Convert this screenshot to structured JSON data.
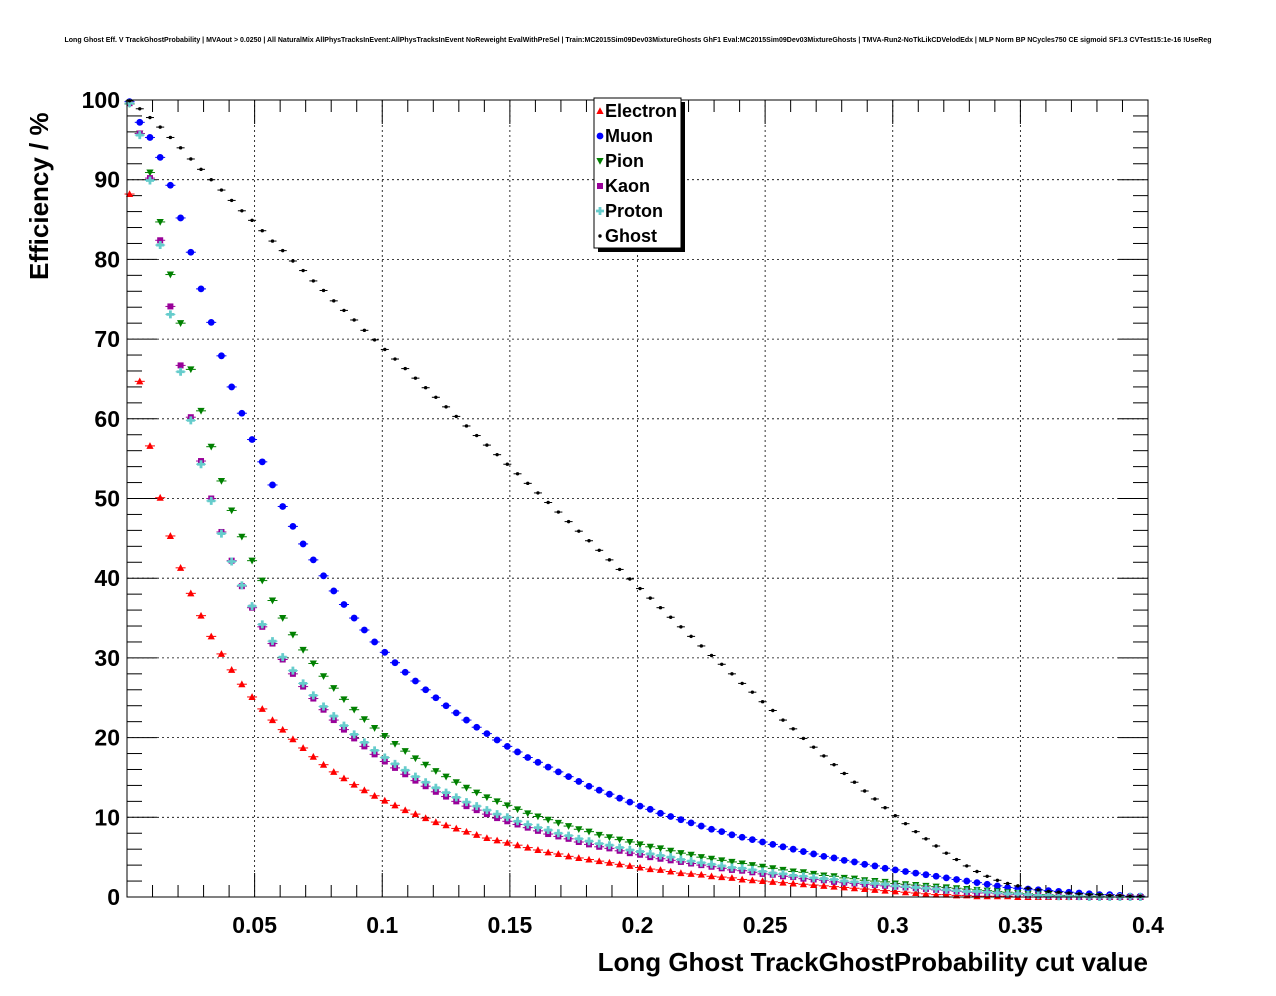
{
  "chart_data": {
    "type": "scatter",
    "title": "Long Ghost Eff. V TrackGhostProbability | MVAout > 0.0250 | All NaturalMix AllPhysTracksInEvent:AllPhysTracksInEvent NoReweight EvalWithPreSel | Train:MC2015Sim09Dev03MixtureGhosts GhF1 Eval:MC2015Sim09Dev03MixtureGhosts | TMVA-Run2-NoTkLikCDVelodEdx | MLP Norm BP NCycles750 CE sigmoid SF1.3 CVTest15:1e-16 !UseReg",
    "xlabel": "Long Ghost TrackGhostProbability cut value",
    "ylabel": "Efficiency / %",
    "xlim": [
      0.0,
      0.4
    ],
    "ylim": [
      0,
      100
    ],
    "xticks": [
      0.05,
      0.1,
      0.15,
      0.2,
      0.25,
      0.3,
      0.35,
      0.4
    ],
    "xtick_labels": [
      "0.05",
      "0.1",
      "0.15",
      "0.2",
      "0.25",
      "0.3",
      "0.35",
      "0.4"
    ],
    "yticks": [
      0,
      10,
      20,
      30,
      40,
      50,
      60,
      70,
      80,
      90,
      100
    ],
    "ytick_labels": [
      "0",
      "10",
      "20",
      "30",
      "40",
      "50",
      "60",
      "70",
      "80",
      "90",
      "100"
    ],
    "grid": true,
    "legend_position": "top-center",
    "x_start": 0.001,
    "x_step": 0.004,
    "series": [
      {
        "name": "Electron",
        "color": "#ff0000",
        "marker": "triangle-up",
        "values": [
          88.2,
          64.7,
          56.6,
          50.1,
          45.3,
          41.3,
          38.1,
          35.3,
          32.7,
          30.5,
          28.5,
          26.7,
          25.1,
          23.6,
          22.2,
          21.0,
          19.8,
          18.7,
          17.6,
          16.6,
          15.7,
          14.9,
          14.1,
          13.4,
          12.7,
          12.1,
          11.5,
          10.9,
          10.4,
          9.9,
          9.4,
          9.0,
          8.6,
          8.2,
          7.8,
          7.4,
          7.1,
          6.8,
          6.5,
          6.2,
          5.9,
          5.6,
          5.4,
          5.1,
          4.9,
          4.7,
          4.5,
          4.3,
          4.1,
          3.9,
          3.7,
          3.5,
          3.4,
          3.2,
          3.0,
          2.9,
          2.8,
          2.6,
          2.5,
          2.4,
          2.2,
          2.1,
          2.0,
          1.9,
          1.8,
          1.7,
          1.6,
          1.5,
          1.4,
          1.3,
          1.2,
          1.1,
          1.0,
          0.9,
          0.8,
          0.7,
          0.6,
          0.5,
          0.4,
          0.3,
          0.3,
          0.2,
          0.2,
          0.1,
          0.1,
          0.1,
          0.1,
          0.0,
          0.0,
          0.0,
          0.0,
          0.0,
          0.0,
          0.0,
          0.0,
          0.0,
          0.0,
          0.0,
          0.0,
          0.0
        ]
      },
      {
        "name": "Muon",
        "color": "#0000ff",
        "marker": "circle",
        "values": [
          99.8,
          97.2,
          95.3,
          92.8,
          89.3,
          85.2,
          80.9,
          76.3,
          72.1,
          67.9,
          64.0,
          60.7,
          57.4,
          54.6,
          51.7,
          49.0,
          46.5,
          44.3,
          42.3,
          40.3,
          38.4,
          36.7,
          35.0,
          33.5,
          32.0,
          30.7,
          29.4,
          28.2,
          27.1,
          26.0,
          25.0,
          24.0,
          23.1,
          22.2,
          21.3,
          20.5,
          19.7,
          18.9,
          18.2,
          17.5,
          16.9,
          16.3,
          15.7,
          15.1,
          14.5,
          13.9,
          13.4,
          12.9,
          12.4,
          11.9,
          11.4,
          11.0,
          10.5,
          10.1,
          9.7,
          9.3,
          8.9,
          8.5,
          8.2,
          7.8,
          7.5,
          7.2,
          6.9,
          6.6,
          6.3,
          6.0,
          5.7,
          5.4,
          5.1,
          4.9,
          4.6,
          4.4,
          4.1,
          3.9,
          3.6,
          3.4,
          3.2,
          3.0,
          2.8,
          2.6,
          2.4,
          2.2,
          2.0,
          1.8,
          1.6,
          1.4,
          1.2,
          1.1,
          1.0,
          0.9,
          0.8,
          0.7,
          0.6,
          0.5,
          0.4,
          0.3,
          0.3,
          0.2,
          0.1,
          0.1
        ]
      },
      {
        "name": "Pion",
        "color": "#008000",
        "marker": "triangle-down",
        "values": [
          99.5,
          95.8,
          90.9,
          84.7,
          78.1,
          72.0,
          66.2,
          61.0,
          56.5,
          52.2,
          48.5,
          45.2,
          42.2,
          39.7,
          37.2,
          35.0,
          32.9,
          31.0,
          29.3,
          27.7,
          26.2,
          24.8,
          23.5,
          22.3,
          21.2,
          20.2,
          19.2,
          18.3,
          17.4,
          16.6,
          15.8,
          15.1,
          14.4,
          13.7,
          13.1,
          12.5,
          12.0,
          11.5,
          11.0,
          10.5,
          10.1,
          9.7,
          9.3,
          8.9,
          8.5,
          8.2,
          7.8,
          7.5,
          7.2,
          6.9,
          6.6,
          6.3,
          6.1,
          5.8,
          5.5,
          5.3,
          5.0,
          4.8,
          4.6,
          4.4,
          4.2,
          4.0,
          3.8,
          3.6,
          3.4,
          3.2,
          3.1,
          2.9,
          2.7,
          2.6,
          2.4,
          2.3,
          2.1,
          2.0,
          1.9,
          1.7,
          1.6,
          1.5,
          1.4,
          1.3,
          1.2,
          1.1,
          1.0,
          0.9,
          0.8,
          0.7,
          0.6,
          0.5,
          0.4,
          0.3,
          0.3,
          0.2,
          0.2,
          0.1,
          0.1,
          0.1,
          0.0,
          0.0,
          0.0,
          0.0
        ]
      },
      {
        "name": "Kaon",
        "color": "#990099",
        "marker": "square",
        "values": [
          99.6,
          95.8,
          90.2,
          82.4,
          74.1,
          66.7,
          60.2,
          54.7,
          50.0,
          45.8,
          42.2,
          39.0,
          36.3,
          33.9,
          31.8,
          29.8,
          28.0,
          26.4,
          24.9,
          23.5,
          22.2,
          21.0,
          19.9,
          18.9,
          17.9,
          17.0,
          16.2,
          15.4,
          14.6,
          13.9,
          13.2,
          12.6,
          12.0,
          11.4,
          10.9,
          10.4,
          9.9,
          9.5,
          9.1,
          8.7,
          8.3,
          7.9,
          7.6,
          7.3,
          6.9,
          6.6,
          6.3,
          6.1,
          5.8,
          5.5,
          5.3,
          5.0,
          4.8,
          4.6,
          4.4,
          4.2,
          4.0,
          3.8,
          3.6,
          3.4,
          3.3,
          3.1,
          2.9,
          2.8,
          2.6,
          2.5,
          2.3,
          2.2,
          2.1,
          1.9,
          1.8,
          1.7,
          1.6,
          1.5,
          1.4,
          1.3,
          1.2,
          1.1,
          1.0,
          0.9,
          0.8,
          0.7,
          0.6,
          0.5,
          0.5,
          0.4,
          0.3,
          0.3,
          0.2,
          0.2,
          0.1,
          0.1,
          0.1,
          0.0,
          0.0,
          0.0,
          0.0,
          0.0,
          0.0,
          0.0
        ]
      },
      {
        "name": "Proton",
        "color": "#66cccc",
        "marker": "cross",
        "values": [
          99.6,
          95.6,
          89.9,
          81.8,
          73.1,
          65.9,
          59.8,
          54.3,
          49.7,
          45.6,
          42.1,
          39.1,
          36.5,
          34.2,
          32.1,
          30.1,
          28.4,
          26.8,
          25.3,
          23.9,
          22.7,
          21.5,
          20.4,
          19.4,
          18.4,
          17.5,
          16.7,
          15.9,
          15.1,
          14.4,
          13.7,
          13.1,
          12.5,
          11.9,
          11.4,
          10.9,
          10.4,
          10.0,
          9.5,
          9.1,
          8.7,
          8.4,
          8.0,
          7.7,
          7.3,
          7.0,
          6.7,
          6.5,
          6.2,
          5.9,
          5.7,
          5.4,
          5.2,
          5.0,
          4.7,
          4.5,
          4.3,
          4.1,
          3.9,
          3.7,
          3.6,
          3.4,
          3.2,
          3.0,
          2.9,
          2.7,
          2.6,
          2.4,
          2.3,
          2.2,
          2.0,
          1.9,
          1.8,
          1.7,
          1.6,
          1.4,
          1.3,
          1.2,
          1.1,
          1.0,
          0.9,
          0.8,
          0.7,
          0.7,
          0.6,
          0.5,
          0.4,
          0.4,
          0.3,
          0.2,
          0.2,
          0.1,
          0.1,
          0.1,
          0.0,
          0.0,
          0.0,
          0.0,
          0.0,
          0.0
        ]
      },
      {
        "name": "Ghost",
        "color": "#000000",
        "marker": "small-dot",
        "values": [
          99.9,
          98.9,
          97.8,
          96.6,
          95.3,
          94.0,
          92.6,
          91.3,
          90.0,
          88.7,
          87.4,
          86.1,
          84.9,
          83.6,
          82.3,
          81.1,
          79.8,
          78.6,
          77.3,
          76.1,
          74.8,
          73.6,
          72.4,
          71.1,
          69.9,
          68.7,
          67.5,
          66.3,
          65.1,
          63.9,
          62.7,
          61.5,
          60.3,
          59.1,
          57.9,
          56.7,
          55.5,
          54.3,
          53.1,
          51.9,
          50.7,
          49.5,
          48.3,
          47.1,
          45.9,
          44.7,
          43.5,
          42.3,
          41.1,
          39.9,
          38.7,
          37.5,
          36.3,
          35.1,
          33.9,
          32.7,
          31.5,
          30.3,
          29.2,
          28.0,
          26.8,
          25.7,
          24.5,
          23.4,
          22.2,
          21.1,
          19.9,
          18.8,
          17.7,
          16.6,
          15.5,
          14.4,
          13.3,
          12.3,
          11.2,
          10.2,
          9.2,
          8.2,
          7.3,
          6.4,
          5.5,
          4.7,
          3.9,
          3.2,
          2.6,
          2.1,
          1.7,
          1.4,
          1.1,
          0.9,
          0.7,
          0.6,
          0.5,
          0.4,
          0.3,
          0.3,
          0.2,
          0.2,
          0.1,
          0.1
        ]
      }
    ]
  }
}
